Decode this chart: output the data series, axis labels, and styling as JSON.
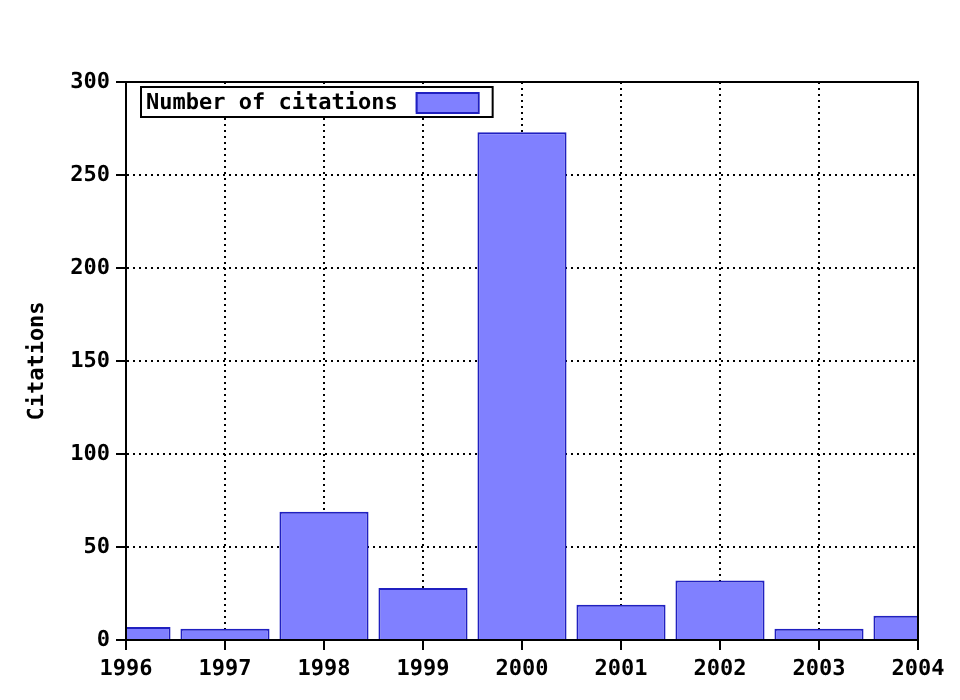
{
  "chart_data": {
    "type": "bar",
    "ylabel": "Citations",
    "x": [
      1996,
      1997,
      1998,
      1999,
      2000,
      2001,
      2002,
      2003,
      2004
    ],
    "series": [
      {
        "name": "Number of citations",
        "color": "#8080ff",
        "values": [
          7,
          6,
          69,
          28,
          273,
          19,
          32,
          6,
          13
        ]
      }
    ],
    "xlim": [
      1996,
      2004
    ],
    "xticks": [
      1996,
      1997,
      1998,
      1999,
      2000,
      2001,
      2002,
      2003,
      2004
    ],
    "ylim": [
      0,
      300
    ],
    "yticks": [
      0,
      50,
      100,
      150,
      200,
      250,
      300
    ],
    "grid": true,
    "legend": "top left"
  }
}
